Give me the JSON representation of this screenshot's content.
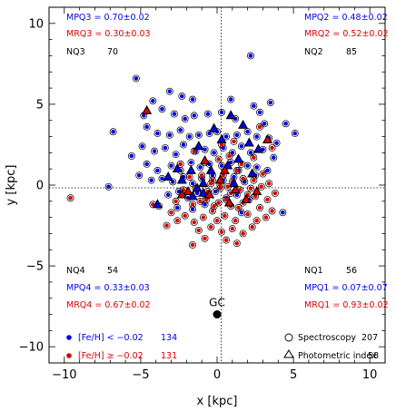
{
  "chart_data": {
    "type": "scatter",
    "xlabel": "x [kpc]",
    "ylabel": "y [kpc]",
    "xlim": [
      -11,
      11
    ],
    "ylim": [
      -11,
      11
    ],
    "x_ticks": [
      "−10",
      "−5",
      "0",
      "5",
      "10"
    ],
    "y_ticks": [
      "−10",
      "−5",
      "0",
      "5",
      "10"
    ],
    "x_tick_values": [
      -10,
      -5,
      0,
      5,
      10
    ],
    "y_tick_values": [
      -10,
      -5,
      0,
      5,
      10
    ],
    "colors": {
      "metal_poor": "#0000ee",
      "metal_rich": "#dd0000",
      "axis": "#000000"
    },
    "quadrants": {
      "q3": {
        "mpq": "MPQ3 = 0.70±0.02",
        "mrq": "MRQ3 = 0.30±0.03",
        "nq_label": "NQ3",
        "nq_value": "70"
      },
      "q2": {
        "mpq": "MPQ2 = 0.48±0.02",
        "mrq": "MRQ2 = 0.52±0.02",
        "nq_label": "NQ2",
        "nq_value": "85"
      },
      "q4": {
        "nq_label": "NQ4",
        "nq_value": "54",
        "mpq": "MPQ4 = 0.33±0.03",
        "mrq": "MRQ4 = 0.67±0.02"
      },
      "q1": {
        "nq_label": "NQ1",
        "nq_value": "56",
        "mpq": "MPQ1 = 0.07±0.07",
        "mrq": "MRQ1 = 0.93±0.02"
      }
    },
    "legend": {
      "poor_label": "[Fe/H] < −0.02",
      "poor_count": "134",
      "rich_label": "[Fe/H] ≥ −0.02",
      "rich_count": "131",
      "spec_label": "Spectroscopy",
      "spec_count": "207",
      "phot_label": "Photometric index",
      "phot_count": "58"
    },
    "gc_label": "GC",
    "gc_point": {
      "x": 0,
      "y": -8
    },
    "series": [
      {
        "name": "[Fe/H] < −0.02",
        "color": "#0000ee",
        "spectroscopy": [
          [
            -5.3,
            6.6
          ],
          [
            -4.2,
            5.2
          ],
          [
            -3.1,
            5.8
          ],
          [
            -2.3,
            5.5
          ],
          [
            -1.6,
            5.3
          ],
          [
            0.9,
            5.3
          ],
          [
            2.2,
            8.0
          ],
          [
            3.5,
            5.1
          ],
          [
            2.4,
            4.9
          ],
          [
            -6.8,
            3.3
          ],
          [
            -4.8,
            4.3
          ],
          [
            -3.6,
            4.7
          ],
          [
            -2.8,
            4.4
          ],
          [
            -2.1,
            4.1
          ],
          [
            -1.5,
            4.3
          ],
          [
            -0.6,
            4.4
          ],
          [
            0.3,
            4.5
          ],
          [
            1.2,
            4.1
          ],
          [
            2.8,
            4.5
          ],
          [
            3.1,
            3.8
          ],
          [
            4.5,
            3.8
          ],
          [
            5.1,
            3.2
          ],
          [
            -4.6,
            3.6
          ],
          [
            -3.9,
            3.2
          ],
          [
            -3.1,
            3.1
          ],
          [
            -2.4,
            3.4
          ],
          [
            -1.8,
            3.0
          ],
          [
            -1.2,
            3.1
          ],
          [
            -0.5,
            3.2
          ],
          [
            0.0,
            3.3
          ],
          [
            0.6,
            3.0
          ],
          [
            1.3,
            3.1
          ],
          [
            2.0,
            3.3
          ],
          [
            2.6,
            3.0
          ],
          [
            3.4,
            2.9
          ],
          [
            3.9,
            2.6
          ],
          [
            -4.9,
            2.4
          ],
          [
            -4.1,
            2.1
          ],
          [
            -3.4,
            2.3
          ],
          [
            -2.7,
            1.9
          ],
          [
            -2.2,
            2.5
          ],
          [
            -1.4,
            2.1
          ],
          [
            -0.8,
            2.2
          ],
          [
            -0.2,
            2.0
          ],
          [
            0.4,
            2.3
          ],
          [
            1.0,
            2.0
          ],
          [
            1.6,
            2.4
          ],
          [
            2.2,
            2.0
          ],
          [
            3.0,
            2.2
          ],
          [
            3.7,
            1.7
          ],
          [
            -5.6,
            1.8
          ],
          [
            -4.6,
            1.3
          ],
          [
            -3.9,
            0.9
          ],
          [
            -3.0,
            1.2
          ],
          [
            -2.4,
            0.9
          ],
          [
            -1.7,
            1.4
          ],
          [
            -1.1,
            1.1
          ],
          [
            -0.5,
            1.3
          ],
          [
            0.3,
            1.2
          ],
          [
            0.9,
            1.4
          ],
          [
            1.4,
            0.9
          ],
          [
            2.0,
            1.2
          ],
          [
            2.6,
            1.1
          ],
          [
            3.3,
            0.9
          ],
          [
            -7.1,
            -0.1
          ],
          [
            -5.1,
            0.6
          ],
          [
            -4.3,
            0.3
          ],
          [
            -3.6,
            0.4
          ],
          [
            -2.9,
            0.2
          ],
          [
            -2.2,
            0.5
          ],
          [
            -1.6,
            0.1
          ],
          [
            -1.0,
            0.4
          ],
          [
            -0.3,
            0.6
          ],
          [
            0.4,
            0.3
          ],
          [
            1.1,
            0.5
          ],
          [
            1.8,
            0.2
          ],
          [
            2.5,
            0.6
          ],
          [
            -3.2,
            -0.6
          ],
          [
            -2.5,
            -0.4
          ],
          [
            -1.9,
            -0.8
          ],
          [
            -1.3,
            -0.5
          ],
          [
            -0.7,
            -0.7
          ],
          [
            -0.1,
            -0.4
          ],
          [
            0.6,
            -0.8
          ],
          [
            1.3,
            -0.6
          ],
          [
            2.1,
            -0.9
          ],
          [
            -2.6,
            -1.4
          ],
          [
            -1.6,
            -1.5
          ],
          [
            -0.8,
            -1.2
          ],
          [
            1.6,
            -1.7
          ],
          [
            4.3,
            -1.7
          ]
        ],
        "photometric": [
          [
            0.9,
            4.3
          ],
          [
            -0.2,
            3.5
          ],
          [
            1.7,
            3.7
          ],
          [
            0.3,
            2.8
          ],
          [
            -1.2,
            2.4
          ],
          [
            2.1,
            2.6
          ],
          [
            2.7,
            2.2
          ],
          [
            -2.6,
            1.0
          ],
          [
            -1.7,
            0.9
          ],
          [
            0.7,
            1.2
          ],
          [
            1.4,
            1.6
          ],
          [
            -0.4,
            0.9
          ],
          [
            2.3,
            0.7
          ],
          [
            -3.2,
            0.5
          ],
          [
            -2.3,
            0.3
          ],
          [
            -0.9,
            0.1
          ],
          [
            1.1,
            0.1
          ],
          [
            -1.6,
            -0.7
          ],
          [
            -0.9,
            -0.5
          ],
          [
            -3.9,
            -1.2
          ],
          [
            -1.3,
            -0.2
          ]
        ]
      },
      {
        "name": "[Fe/H] ≥ −0.02",
        "color": "#dd0000",
        "spectroscopy": [
          [
            -9.6,
            -0.8
          ],
          [
            -4.2,
            -1.2
          ],
          [
            -3.0,
            -1.7
          ],
          [
            -2.1,
            -1.9
          ],
          [
            -1.5,
            -2.3
          ],
          [
            -0.9,
            -2.0
          ],
          [
            -0.3,
            -1.6
          ],
          [
            0.5,
            -1.9
          ],
          [
            1.2,
            -2.2
          ],
          [
            2.0,
            -1.8
          ],
          [
            2.8,
            -1.4
          ],
          [
            3.2,
            -2.0
          ],
          [
            -3.8,
            -1.3
          ],
          [
            -2.7,
            -1.0
          ],
          [
            -1.6,
            -1.2
          ],
          [
            -0.7,
            -0.9
          ],
          [
            0.1,
            -1.1
          ],
          [
            0.9,
            -1.3
          ],
          [
            1.7,
            -1.1
          ],
          [
            2.5,
            -0.7
          ],
          [
            3.3,
            -0.9
          ],
          [
            3.8,
            -0.5
          ],
          [
            -2.2,
            -0.3
          ],
          [
            -1.4,
            -0.2
          ],
          [
            -0.6,
            -0.4
          ],
          [
            0.2,
            -0.2
          ],
          [
            0.9,
            -0.5
          ],
          [
            1.5,
            -0.3
          ],
          [
            2.2,
            -0.2
          ],
          [
            2.9,
            -0.1
          ],
          [
            3.4,
            0.1
          ],
          [
            -1.8,
            0.5
          ],
          [
            -1.0,
            0.6
          ],
          [
            -0.3,
            0.3
          ],
          [
            0.4,
            0.6
          ],
          [
            1.0,
            0.2
          ],
          [
            1.7,
            0.4
          ],
          [
            2.4,
            0.3
          ],
          [
            3.0,
            0.7
          ],
          [
            0.2,
            0.0
          ],
          [
            0.7,
            -0.1
          ],
          [
            -0.8,
            1.4
          ],
          [
            0.1,
            1.6
          ],
          [
            0.8,
            1.8
          ],
          [
            1.6,
            1.3
          ],
          [
            2.4,
            1.7
          ],
          [
            -1.5,
            2.1
          ],
          [
            0.3,
            2.5
          ],
          [
            1.1,
            2.7
          ],
          [
            2.8,
            3.6
          ],
          [
            -1.2,
            -2.8
          ],
          [
            -0.4,
            -2.6
          ],
          [
            0.3,
            -2.9
          ],
          [
            1.0,
            -2.7
          ],
          [
            1.7,
            -3.0
          ],
          [
            0.6,
            -3.4
          ],
          [
            1.3,
            -3.6
          ],
          [
            -1.6,
            -3.7
          ],
          [
            -0.8,
            -3.3
          ],
          [
            2.3,
            -2.6
          ],
          [
            -2.6,
            -2.2
          ],
          [
            -3.3,
            -2.5
          ],
          [
            0.0,
            -2.2
          ],
          [
            2.6,
            -2.2
          ],
          [
            3.6,
            -1.6
          ],
          [
            -0.2,
            -1.3
          ],
          [
            1.4,
            -1.4
          ],
          [
            2.0,
            -0.6
          ],
          [
            -1.1,
            -1.0
          ],
          [
            0.6,
            -0.9
          ],
          [
            -0.4,
            0.1
          ],
          [
            1.3,
            0.9
          ],
          [
            3.6,
            2.3
          ],
          [
            -2.4,
            1.3
          ]
        ],
        "photometric": [
          [
            -4.6,
            4.6
          ],
          [
            3.3,
            2.8
          ],
          [
            -0.8,
            1.5
          ],
          [
            0.5,
            0.9
          ],
          [
            -1.9,
            -0.4
          ],
          [
            1.9,
            -0.9
          ],
          [
            1.2,
            -0.3
          ],
          [
            0.2,
            0.3
          ],
          [
            -0.5,
            -0.6
          ],
          [
            2.6,
            -0.4
          ],
          [
            0.8,
            -1.1
          ],
          [
            -2.3,
            -0.6
          ]
        ]
      }
    ]
  }
}
